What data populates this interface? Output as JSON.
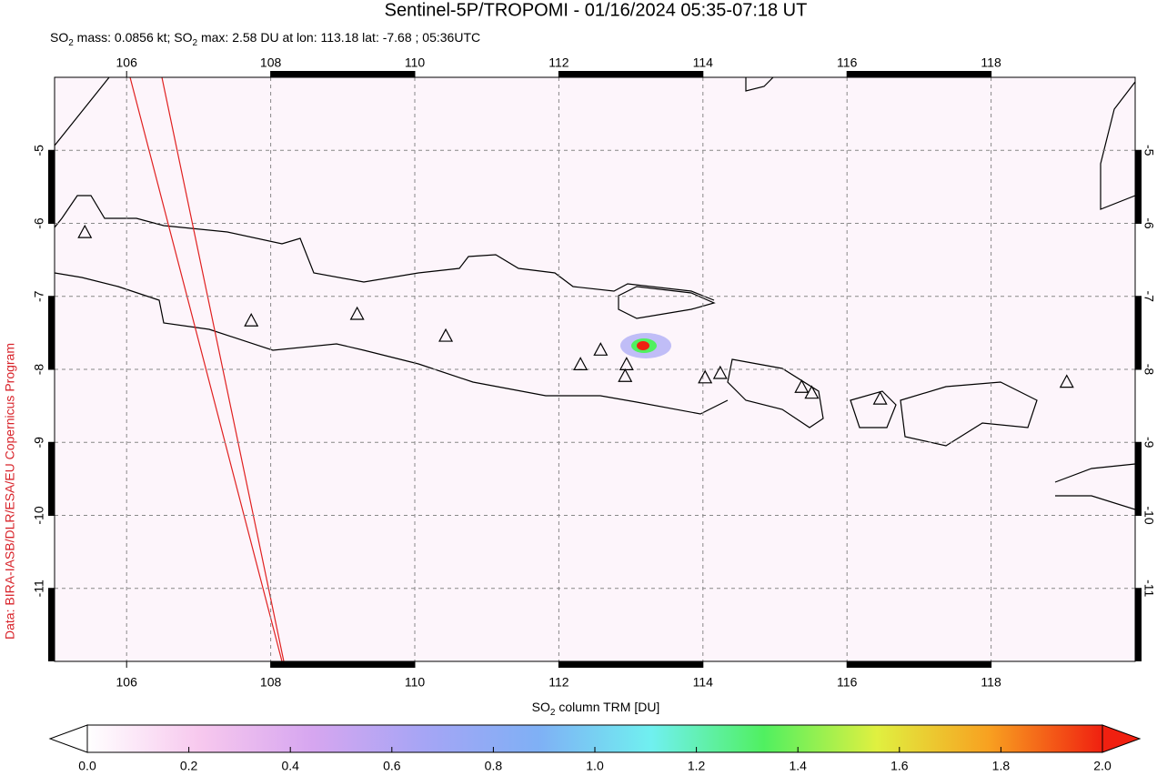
{
  "chart_data": {
    "type": "map",
    "title": "Sentinel-5P/TROPOMI - 01/16/2024 05:35-07:18 UT",
    "subtitle_parts": [
      "SO",
      "2",
      " mass: 0.0856 kt; SO",
      "2",
      " max: 2.58 DU at lon: 113.18 lat: -7.68 ; 05:36UTC"
    ],
    "credit": "Data: BIRA-IASB/DLR/ESA/EU Copernicus Program",
    "xlim": [
      105,
      120
    ],
    "ylim": [
      -12,
      -4
    ],
    "xticks": [
      106,
      108,
      110,
      112,
      114,
      116,
      118
    ],
    "yticks": [
      -5,
      -6,
      -7,
      -8,
      -9,
      -10,
      -11
    ],
    "grid": true,
    "volcanoes": {
      "x": [
        105.42,
        107.73,
        109.2,
        110.43,
        112.3,
        112.58,
        112.94,
        112.92,
        114.03,
        114.24,
        115.37,
        115.51,
        116.46,
        119.05
      ],
      "y": [
        -6.12,
        -7.33,
        -7.24,
        -7.54,
        -7.93,
        -7.73,
        -7.93,
        -8.09,
        -8.11,
        -8.05,
        -8.24,
        -8.32,
        -8.4,
        -8.17
      ]
    },
    "colorbar": {
      "label_parts": [
        "SO",
        "2",
        " column TRM [DU]"
      ],
      "lim": [
        0,
        2
      ],
      "ticks": [
        {
          "value": 0,
          "label": "0.0"
        },
        0.2,
        0.4,
        0.6,
        0.8,
        {
          "value": 1,
          "label": "1.0"
        },
        1.2,
        1.4,
        1.6,
        1.8,
        {
          "value": 2,
          "label": "2.0"
        }
      ],
      "colors": [
        "#ffffff",
        "#f7c8ee",
        "#d6a6f0",
        "#a5a5f5",
        "#7fb0f5",
        "#70f0f0",
        "#50f060",
        "#e0f040",
        "#f8a020",
        "#f02010"
      ]
    }
  }
}
